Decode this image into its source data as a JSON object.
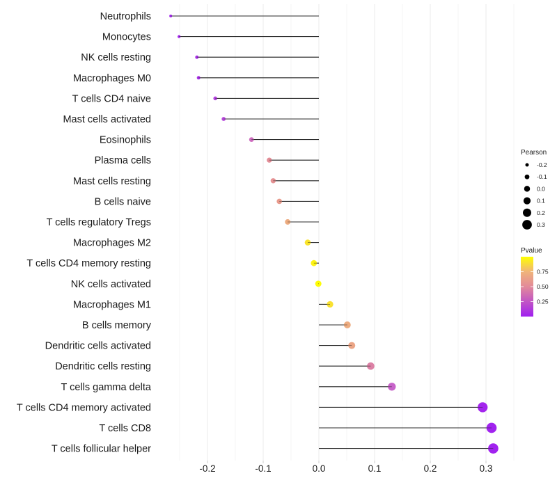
{
  "chart_data": {
    "type": "lollipop",
    "title": "",
    "xlabel": "",
    "ylabel": "",
    "xlim": [
      -0.275,
      0.33
    ],
    "x_ticks": [
      -0.2,
      -0.1,
      0.0,
      0.1,
      0.2,
      0.3
    ],
    "x_tick_labels": [
      "-0.2",
      "-0.1",
      "0.0",
      "0.1",
      "0.2",
      "0.3"
    ],
    "grid": true,
    "categories": [
      "Neutrophils",
      "Monocytes",
      "NK cells resting",
      "Macrophages M0",
      "T cells CD4 naive",
      "Mast cells activated",
      "Eosinophils",
      "Plasma cells",
      "Mast cells resting",
      "B cells naive",
      "T cells regulatory  Tregs ",
      "Macrophages M2",
      "T cells CD4 memory resting",
      "NK cells activated",
      "Macrophages M1",
      "B cells memory",
      "Dendritic cells activated",
      "Dendritic cells resting",
      "T cells gamma delta",
      "T cells CD4 memory activated",
      "T cells CD8",
      "T cells follicular helper"
    ],
    "pearson": [
      -0.266,
      -0.251,
      -0.219,
      -0.216,
      -0.186,
      -0.171,
      -0.121,
      -0.089,
      -0.082,
      -0.071,
      -0.056,
      -0.02,
      -0.009,
      -0.001,
      0.02,
      0.051,
      0.059,
      0.093,
      0.131,
      0.294,
      0.31,
      0.313
    ],
    "pvalue": [
      0.02,
      0.03,
      0.06,
      0.06,
      0.13,
      0.16,
      0.33,
      0.52,
      0.55,
      0.6,
      0.7,
      0.91,
      0.96,
      0.99,
      0.9,
      0.7,
      0.66,
      0.45,
      0.28,
      0.02,
      0.01,
      0.01
    ],
    "legend": {
      "size": {
        "title": "Pearson",
        "values": [
          -0.2,
          -0.1,
          0.0,
          0.1,
          0.2,
          0.3
        ],
        "labels": [
          "-0.2",
          "-0.1",
          "0.0",
          "0.1",
          "0.2",
          "0.3"
        ]
      },
      "color": {
        "title": "Pvalue",
        "range": [
          0.0,
          1.0
        ],
        "ticks": [
          0.25,
          0.5,
          0.75
        ],
        "tick_labels": [
          "0.25",
          "0.50",
          "0.75"
        ],
        "low_color": "#a020f0",
        "mid_color": "#e28a9a",
        "high_color": "#ffff00"
      },
      "placement": "right"
    }
  }
}
